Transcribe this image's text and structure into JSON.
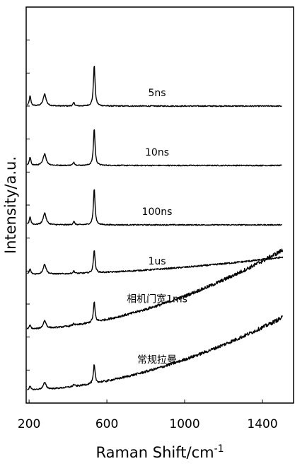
{
  "chart_data": {
    "type": "line",
    "xlabel": "Raman Shift/cm",
    "xlabel_superscript": "-1",
    "ylabel": "Intensity/a.u.",
    "xlim": [
      185,
      1560
    ],
    "ylim": [
      0,
      6
    ],
    "x_ticks": [
      200,
      600,
      1000,
      1400
    ],
    "x_tick_labels": [
      "200",
      "600",
      "1000",
      "1400"
    ],
    "y_ticks_unlabeled": [
      0.5,
      1,
      1.5,
      2,
      2.5,
      3,
      3.5,
      4,
      4.5,
      5,
      5.5
    ],
    "grid": false,
    "line_color": "#000000",
    "peaks_cm1": [
      205,
      280,
      430,
      535
    ],
    "series": [
      {
        "name": "5ns",
        "offset": 4.5,
        "x_start": 190,
        "x_end": 1500,
        "baseline_end": 0.0,
        "peak_heights": [
          0.15,
          0.18,
          0.05,
          0.62
        ]
      },
      {
        "name": "10ns",
        "offset": 3.6,
        "x_start": 190,
        "x_end": 1500,
        "baseline_end": 0.0,
        "peak_heights": [
          0.12,
          0.18,
          0.05,
          0.56
        ]
      },
      {
        "name": "100ns",
        "offset": 2.7,
        "x_start": 190,
        "x_end": 1500,
        "baseline_end": 0.0,
        "peak_heights": [
          0.12,
          0.18,
          0.05,
          0.55
        ]
      },
      {
        "name": "1us",
        "offset": 1.95,
        "x_start": 190,
        "x_end": 1505,
        "baseline_end": 0.26,
        "peak_heights": [
          0.08,
          0.15,
          0.04,
          0.35
        ]
      },
      {
        "name": "相机门宽1ms",
        "offset": 1.12,
        "x_start": 190,
        "x_end": 1505,
        "baseline_end": 1.2,
        "peak_heights": [
          0.06,
          0.12,
          0.03,
          0.3
        ]
      },
      {
        "name": "常规拉曼",
        "offset": 0.2,
        "x_start": 190,
        "x_end": 1505,
        "baseline_end": 1.1,
        "peak_heights": [
          0.05,
          0.1,
          0.03,
          0.28
        ]
      }
    ]
  }
}
